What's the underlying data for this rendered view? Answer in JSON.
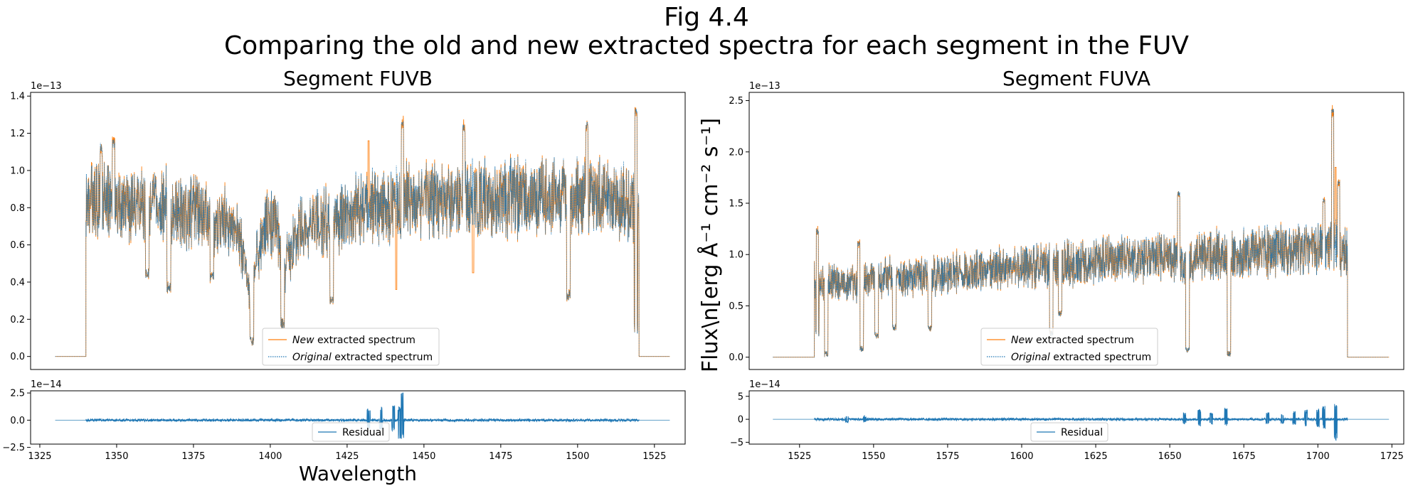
{
  "figure": {
    "title_line1": "Fig 4.4",
    "title_line2": "Comparing the old and new extracted spectra for each segment in the FUV",
    "xlabel": "Wavelength",
    "ylabel": "Flux\\n[erg Å⁻¹ cm⁻² s⁻¹]"
  },
  "colors": {
    "new": "#ff7f0e",
    "original": "#1f77b4",
    "residual": "#1f77b4"
  },
  "chart_data": [
    {
      "type": "line",
      "title": "Segment FUVB",
      "role": "spectrum",
      "xlim": [
        1322,
        1535
      ],
      "ylim": [
        -0.07,
        1.42
      ],
      "yticks": [
        0.0,
        0.2,
        0.4,
        0.6,
        0.8,
        1.0,
        1.2,
        1.4
      ],
      "ytick_labels": [
        "0.0",
        "0.2",
        "0.4",
        "0.6",
        "0.8",
        "1.0",
        "1.2",
        "1.4"
      ],
      "y_offset": "1e−13",
      "x_range_data": [
        1340,
        1520
      ],
      "series": [
        {
          "name": "New extracted spectrum",
          "style": "solid"
        },
        {
          "name": "Original extracted spectrum",
          "style": "dotted"
        }
      ],
      "legend": {
        "location": "lower center",
        "entries": [
          {
            "em": "New",
            "rest": " extracted spectrum"
          },
          {
            "em": "Original",
            "rest": " extracted spectrum"
          }
        ]
      },
      "profile_x": [
        1340,
        1345,
        1350,
        1355,
        1360,
        1365,
        1370,
        1375,
        1380,
        1385,
        1390,
        1393,
        1395,
        1398,
        1402,
        1404,
        1410,
        1420,
        1425,
        1430,
        1440,
        1450,
        1460,
        1470,
        1480,
        1490,
        1500,
        1510,
        1515,
        1520
      ],
      "profile_y": [
        0.82,
        0.85,
        0.83,
        0.8,
        0.8,
        0.82,
        0.78,
        0.77,
        0.75,
        0.72,
        0.66,
        0.35,
        0.5,
        0.7,
        0.72,
        0.45,
        0.7,
        0.72,
        0.75,
        0.8,
        0.82,
        0.83,
        0.84,
        0.85,
        0.86,
        0.86,
        0.87,
        0.85,
        0.82,
        0.8
      ],
      "dips": [
        [
          1360,
          0.42
        ],
        [
          1367,
          0.34
        ],
        [
          1381,
          0.4
        ],
        [
          1394,
          0.05
        ],
        [
          1404,
          0.15
        ],
        [
          1420,
          0.27
        ],
        [
          1497,
          0.3
        ],
        [
          1519,
          0.12
        ]
      ],
      "spikes": [
        [
          1345,
          1.15
        ],
        [
          1349,
          1.17
        ],
        [
          1443,
          1.28
        ],
        [
          1463,
          1.25
        ],
        [
          1503,
          1.27
        ],
        [
          1519,
          1.34
        ]
      ],
      "new_only_spikes": [
        [
          1432,
          1.16
        ],
        [
          1441,
          0.36
        ],
        [
          1466,
          0.45
        ]
      ]
    },
    {
      "type": "line",
      "role": "residual",
      "xlim": [
        1322,
        1535
      ],
      "ylim": [
        -2.2,
        2.7
      ],
      "yticks": [
        -2.5,
        0.0,
        2.5
      ],
      "ytick_labels": [
        "−2.5",
        "0.0",
        "2.5"
      ],
      "y_offset": "1e−14",
      "xticks": [
        1325,
        1350,
        1375,
        1400,
        1425,
        1450,
        1475,
        1500,
        1525
      ],
      "xtick_labels": [
        "1325",
        "1350",
        "1375",
        "1400",
        "1425",
        "1450",
        "1475",
        "1500",
        "1525"
      ],
      "x_range_data": [
        1340,
        1520
      ],
      "bursts": [
        [
          1432,
          1.1
        ],
        [
          1436,
          1.3
        ],
        [
          1440,
          1.4
        ],
        [
          1443,
          2.6
        ],
        [
          1442,
          -1.8
        ]
      ],
      "legend": {
        "location": "lower center",
        "entries": [
          {
            "em": "",
            "rest": "Residual"
          }
        ]
      }
    },
    {
      "type": "line",
      "title": "Segment FUVA",
      "role": "spectrum",
      "xlim": [
        1508,
        1729
      ],
      "ylim": [
        -0.12,
        2.58
      ],
      "yticks": [
        0.0,
        0.5,
        1.0,
        1.5,
        2.0,
        2.5
      ],
      "ytick_labels": [
        "0.0",
        "0.5",
        "1.0",
        "1.5",
        "2.0",
        "2.5"
      ],
      "y_offset": "1e−13",
      "x_range_data": [
        1530,
        1710
      ],
      "series": [
        {
          "name": "New extracted spectrum",
          "style": "solid"
        },
        {
          "name": "Original extracted spectrum",
          "style": "dotted"
        }
      ],
      "legend": {
        "location": "lower center",
        "entries": [
          {
            "em": "New",
            "rest": " extracted spectrum"
          },
          {
            "em": "Original",
            "rest": " extracted spectrum"
          }
        ]
      },
      "profile_x": [
        1530,
        1535,
        1540,
        1545,
        1550,
        1560,
        1570,
        1580,
        1590,
        1600,
        1610,
        1620,
        1630,
        1640,
        1650,
        1655,
        1660,
        1670,
        1680,
        1690,
        1700,
        1706,
        1710
      ],
      "profile_y": [
        0.75,
        0.72,
        0.7,
        0.72,
        0.75,
        0.78,
        0.8,
        0.82,
        0.85,
        0.88,
        0.9,
        0.92,
        0.95,
        0.97,
        0.98,
        0.9,
        1.0,
        1.0,
        1.02,
        1.05,
        1.05,
        1.1,
        1.0
      ],
      "dips": [
        [
          1531,
          0.2
        ],
        [
          1534,
          0.0
        ],
        [
          1546,
          0.05
        ],
        [
          1551,
          0.18
        ],
        [
          1557,
          0.26
        ],
        [
          1569,
          0.25
        ],
        [
          1610,
          0.2
        ],
        [
          1613,
          0.4
        ],
        [
          1656,
          0.05
        ],
        [
          1670,
          0.0
        ]
      ],
      "spikes": [
        [
          1531,
          1.25
        ],
        [
          1545,
          1.13
        ],
        [
          1653,
          1.62
        ],
        [
          1702,
          1.55
        ],
        [
          1705,
          2.42
        ],
        [
          1707,
          1.72
        ]
      ],
      "new_only_spikes": [
        [
          1706,
          1.85
        ]
      ]
    },
    {
      "type": "line",
      "role": "residual",
      "xlim": [
        1508,
        1729
      ],
      "ylim": [
        -5.4,
        6.2
      ],
      "yticks": [
        -5,
        0,
        5
      ],
      "ytick_labels": [
        "−5",
        "0",
        "5"
      ],
      "y_offset": "1e−14",
      "xticks": [
        1525,
        1550,
        1575,
        1600,
        1625,
        1650,
        1675,
        1700,
        1725
      ],
      "xtick_labels": [
        "1525",
        "1550",
        "1575",
        "1600",
        "1625",
        "1650",
        "1675",
        "1700",
        "1725"
      ],
      "x_range_data": [
        1530,
        1710
      ],
      "bursts": [
        [
          1655,
          1.5
        ],
        [
          1660,
          2.2
        ],
        [
          1664,
          1.6
        ],
        [
          1669,
          2.4
        ],
        [
          1683,
          1.5
        ],
        [
          1688,
          1.4
        ],
        [
          1692,
          1.8
        ],
        [
          1696,
          2.2
        ],
        [
          1700,
          2.6
        ],
        [
          1702,
          3.0
        ],
        [
          1706,
          5.8
        ],
        [
          1706,
          -5.0
        ],
        [
          1541,
          1.0
        ],
        [
          1547,
          0.8
        ]
      ],
      "legend": {
        "location": "lower center",
        "entries": [
          {
            "em": "",
            "rest": "Residual"
          }
        ]
      }
    }
  ]
}
